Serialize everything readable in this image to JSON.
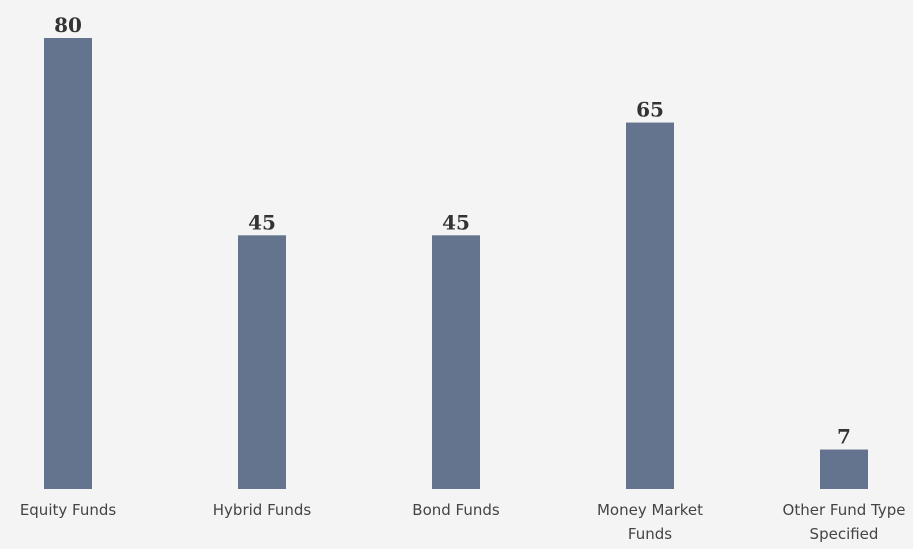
{
  "chart_data": {
    "type": "bar",
    "categories": [
      "Equity Funds",
      "Hybrid Funds",
      "Bond Funds",
      "Money Market Funds",
      "Other Fund Type Specified"
    ],
    "values": [
      80,
      45,
      45,
      65,
      7
    ],
    "color": "#64748f"
  }
}
